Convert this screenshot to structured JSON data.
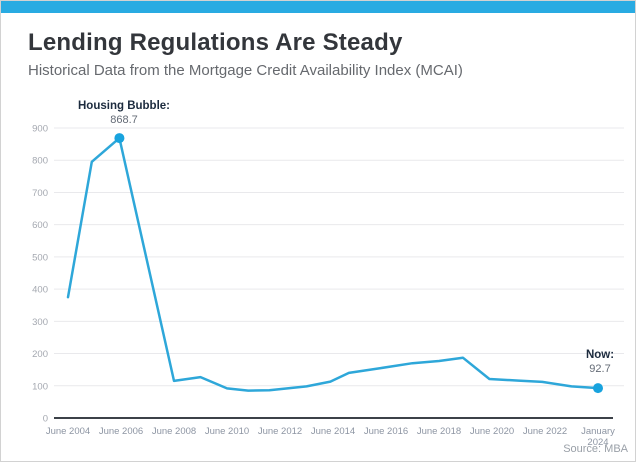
{
  "header": {
    "title": "Lending Regulations Are Steady",
    "subtitle": "Historical Data from the Mortgage Credit Availability Index (MCAI)"
  },
  "theme": {
    "accent_bar_color": "#29abe2",
    "line_color": "#2ea7d9",
    "marker_color": "#18a3de",
    "grid_color": "#e9e9ec",
    "axis_color": "#3c4148"
  },
  "chart": {
    "annotations": [
      {
        "id": "housing-bubble",
        "label": "Housing Bubble:",
        "value": "868.7"
      },
      {
        "id": "now",
        "label": "Now:",
        "value": "92.7"
      }
    ],
    "source": "Source: MBA"
  },
  "chart_data": {
    "type": "line",
    "title": "Lending Regulations Are Steady",
    "subtitle": "Historical Data from the Mortgage Credit Availability Index (MCAI)",
    "xlabel": "",
    "ylabel": "",
    "ylim": [
      0,
      900
    ],
    "y_ticks": [
      0,
      100,
      200,
      300,
      400,
      500,
      600,
      700,
      800,
      900
    ],
    "x_tick_labels": [
      "June 2004",
      "June 2006",
      "June 2008",
      "June 2010",
      "June 2012",
      "June 2014",
      "June 2016",
      "June 2018",
      "June 2020",
      "June 2022",
      "January\n2024"
    ],
    "grid": "horizontal",
    "legend": "none",
    "source": "Source: MBA",
    "series": [
      {
        "name": "Mortgage Credit Availability Index (MCAI)",
        "points": [
          {
            "date": "June 2004",
            "x": 0.0,
            "value": 375
          },
          {
            "date": "2005",
            "x": 0.45,
            "value": 795
          },
          {
            "date": "June 2006",
            "x": 0.97,
            "value": 868.7,
            "marker": true,
            "label": "Housing Bubble: 868.7"
          },
          {
            "date": "June 2008",
            "x": 2.0,
            "value": 115
          },
          {
            "date": "2009",
            "x": 2.5,
            "value": 127
          },
          {
            "date": "June 2010",
            "x": 3.0,
            "value": 92
          },
          {
            "date": "2011",
            "x": 3.4,
            "value": 85
          },
          {
            "date": "2012",
            "x": 3.8,
            "value": 86
          },
          {
            "date": "2013",
            "x": 4.5,
            "value": 98
          },
          {
            "date": "June 2014",
            "x": 4.95,
            "value": 113
          },
          {
            "date": "2015",
            "x": 5.3,
            "value": 140
          },
          {
            "date": "2016",
            "x": 5.9,
            "value": 155
          },
          {
            "date": "2017",
            "x": 6.5,
            "value": 170
          },
          {
            "date": "June 2018",
            "x": 7.0,
            "value": 177
          },
          {
            "date": "2019",
            "x": 7.45,
            "value": 187
          },
          {
            "date": "June 2020",
            "x": 7.95,
            "value": 121
          },
          {
            "date": "2021",
            "x": 8.5,
            "value": 116
          },
          {
            "date": "June 2022",
            "x": 8.95,
            "value": 112
          },
          {
            "date": "2023",
            "x": 9.5,
            "value": 98
          },
          {
            "date": "January 2024",
            "x": 10.0,
            "value": 92.7,
            "marker": true,
            "label": "Now: 92.7"
          }
        ]
      }
    ]
  }
}
